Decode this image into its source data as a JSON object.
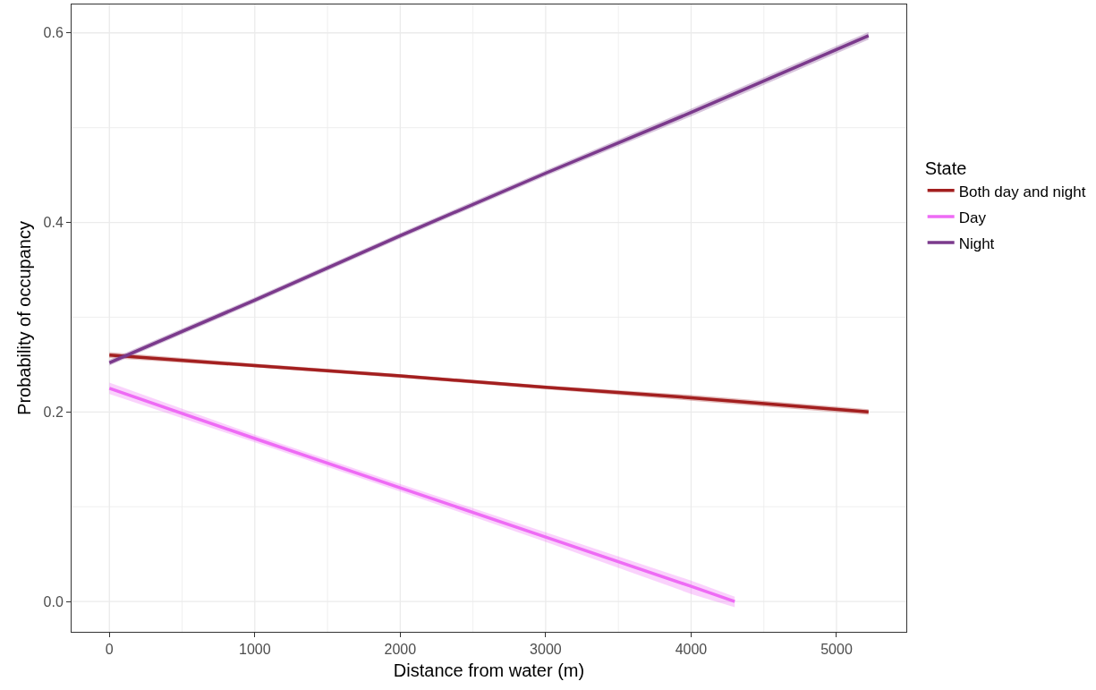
{
  "chart_data": {
    "type": "line",
    "xlabel": "Distance from water (m)",
    "ylabel": "Probability of occupancy",
    "legend_title": "State",
    "legend": "right",
    "grid": true,
    "line_style": "solid",
    "xlim": [
      -260,
      5480
    ],
    "ylim": [
      -0.032,
      0.63
    ],
    "xticks": [
      0,
      {
        "value": 500,
        "label": null
      },
      1000,
      {
        "value": 1500,
        "label": null
      },
      2000,
      {
        "value": 2500,
        "label": null
      },
      3000,
      {
        "value": 3500,
        "label": null
      },
      4000,
      {
        "value": 4500,
        "label": null
      },
      5000
    ],
    "yticks": [
      {
        "value": 0,
        "label": "0.0"
      },
      {
        "value": 0.1,
        "label": null
      },
      0.2,
      {
        "value": 0.3,
        "label": null
      },
      0.4,
      {
        "value": 0.5,
        "label": null
      },
      0.6
    ],
    "x": [
      0,
      1000,
      2000,
      3000,
      4000,
      5220
    ],
    "series": [
      {
        "name": "Both day and night",
        "color": "#a31f1f",
        "values": [
          0.26,
          0.249,
          0.238,
          0.226,
          0.215,
          0.2
        ],
        "lower": [
          0.257,
          0.247,
          0.236,
          0.224,
          0.212,
          0.197
        ],
        "upper": [
          0.263,
          0.251,
          0.24,
          0.228,
          0.218,
          0.203
        ]
      },
      {
        "name": "Day",
        "color": "#ee6bf5",
        "x": [
          0,
          1000,
          2000,
          3000,
          4000,
          4300
        ],
        "values": [
          0.225,
          0.172,
          0.12,
          0.068,
          0.016,
          0.0
        ],
        "lower": [
          0.219,
          0.168,
          0.116,
          0.063,
          0.008,
          -0.006
        ],
        "upper": [
          0.231,
          0.176,
          0.124,
          0.073,
          0.022,
          0.005
        ]
      },
      {
        "name": "Night",
        "color": "#7b3a8c",
        "values": [
          0.252,
          0.318,
          0.386,
          0.452,
          0.516,
          0.597
        ],
        "lower": [
          0.249,
          0.315,
          0.383,
          0.449,
          0.512,
          0.593
        ],
        "upper": [
          0.255,
          0.321,
          0.389,
          0.455,
          0.52,
          0.601
        ]
      }
    ]
  }
}
